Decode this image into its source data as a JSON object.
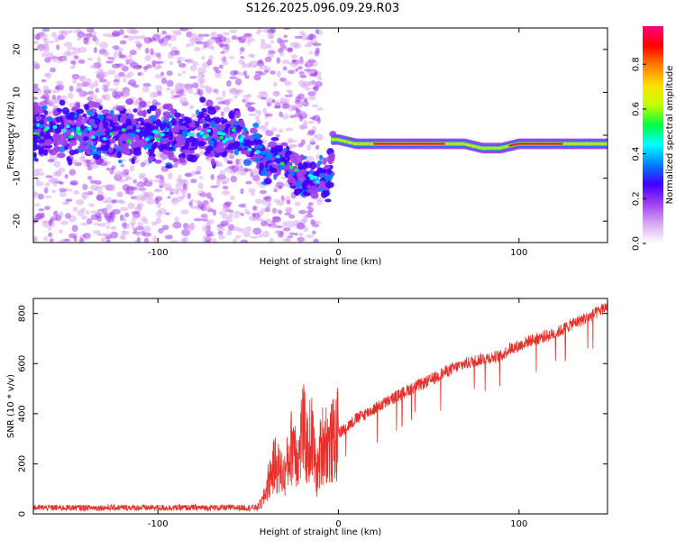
{
  "title": "S126.2025.096.09.29.R03",
  "chart_data": [
    {
      "type": "heatmap",
      "xlabel": "Height of straight line (km)",
      "ylabel": "Frequency (Hz)",
      "xlim": [
        -169,
        149
      ],
      "ylim": [
        -25,
        25
      ],
      "xticks": [
        -100,
        0,
        100
      ],
      "yticks": [
        -20,
        -10,
        0,
        10,
        20
      ],
      "colorbar": {
        "label": "Normalized spectral amplitude",
        "range": [
          0,
          0.97
        ],
        "ticks": [
          0.0,
          0.2,
          0.4,
          0.6,
          0.8
        ],
        "colors": [
          "#ffffff",
          "#d8a8f0",
          "#a040f0",
          "#4000ff",
          "#0080ff",
          "#00ffff",
          "#00ff40",
          "#c0ff00",
          "#ffe000",
          "#ff8000",
          "#ff0000",
          "#ff0080"
        ]
      },
      "ridge": [
        {
          "x": -169,
          "y": 1
        },
        {
          "x": -150,
          "y": 1
        },
        {
          "x": -130,
          "y": 0
        },
        {
          "x": -110,
          "y": 0
        },
        {
          "x": -90,
          "y": 0
        },
        {
          "x": -70,
          "y": 0
        },
        {
          "x": -55,
          "y": 0
        },
        {
          "x": -50,
          "y": -3
        },
        {
          "x": -45,
          "y": -3
        },
        {
          "x": -40,
          "y": -7
        },
        {
          "x": -35,
          "y": -6
        },
        {
          "x": -30,
          "y": -5
        },
        {
          "x": -25,
          "y": -9
        },
        {
          "x": -20,
          "y": -10
        },
        {
          "x": -15,
          "y": -11
        },
        {
          "x": -10,
          "y": -10
        },
        {
          "x": -5,
          "y": -10
        },
        {
          "x": -3,
          "y": -1
        },
        {
          "x": 0,
          "y": -1
        },
        {
          "x": 10,
          "y": -2
        },
        {
          "x": 20,
          "y": -2
        },
        {
          "x": 30,
          "y": -2
        },
        {
          "x": 50,
          "y": -2
        },
        {
          "x": 70,
          "y": -2
        },
        {
          "x": 80,
          "y": -3
        },
        {
          "x": 90,
          "y": -3
        },
        {
          "x": 100,
          "y": -2
        },
        {
          "x": 120,
          "y": -2
        },
        {
          "x": 149,
          "y": -2
        }
      ]
    },
    {
      "type": "line",
      "xlabel": "Height of straight line (km)",
      "ylabel": "SNR (10 * v/v)",
      "xlim": [
        -169,
        149
      ],
      "ylim": [
        0,
        860
      ],
      "xticks": [
        -100,
        0,
        100
      ],
      "yticks": [
        0,
        200,
        400,
        600,
        800
      ],
      "series": [
        {
          "color": "#e8302a",
          "x": [
            -169,
            -150,
            -130,
            -110,
            -90,
            -70,
            -55,
            -45,
            -42,
            -38,
            -35,
            -30,
            -25,
            -22,
            -20,
            -17,
            -15,
            -12,
            -10,
            -8,
            -5,
            -2,
            0,
            5,
            10,
            15,
            20,
            25,
            30,
            35,
            40,
            50,
            60,
            70,
            80,
            90,
            95,
            100,
            105,
            110,
            120,
            130,
            140,
            149
          ],
          "y": [
            25,
            25,
            25,
            25,
            25,
            25,
            25,
            25,
            50,
            150,
            200,
            150,
            300,
            220,
            350,
            250,
            320,
            150,
            250,
            300,
            270,
            300,
            320,
            350,
            380,
            400,
            420,
            440,
            460,
            480,
            500,
            530,
            570,
            600,
            620,
            630,
            660,
            670,
            690,
            700,
            720,
            760,
            790,
            830
          ]
        }
      ]
    }
  ]
}
